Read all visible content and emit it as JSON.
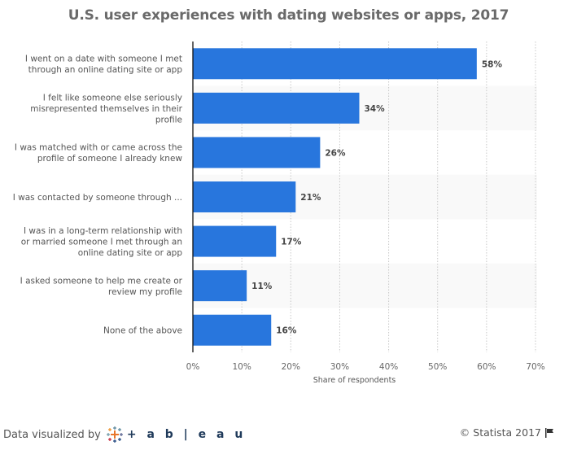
{
  "chart_data": {
    "type": "bar",
    "orientation": "horizontal",
    "title": "U.S. user experiences with dating websites or apps, 2017",
    "xlabel": "Share of respondents",
    "ylabel": "",
    "xlim": [
      0,
      70
    ],
    "x_ticks": [
      0,
      10,
      20,
      30,
      40,
      50,
      60,
      70
    ],
    "x_tick_labels": [
      "0%",
      "10%",
      "20%",
      "30%",
      "40%",
      "50%",
      "60%",
      "70%"
    ],
    "grid": true,
    "categories": [
      [
        "I went on a date with someone I met",
        "through an online dating site or app"
      ],
      [
        "I felt like someone else seriously",
        "misrepresented themselves in their",
        "profile"
      ],
      [
        "I was matched with or came across the",
        "profile of someone I already knew"
      ],
      [
        "I was contacted by someone through ..."
      ],
      [
        "I was in a long-term relationship with",
        "or married someone I met through an",
        "online dating site or app"
      ],
      [
        "I asked someone to help me create or",
        "review my profile"
      ],
      [
        "None of the above"
      ]
    ],
    "values": [
      58,
      34,
      26,
      21,
      17,
      11,
      16
    ],
    "value_labels": [
      "58%",
      "34%",
      "26%",
      "21%",
      "17%",
      "11%",
      "16%"
    ],
    "bar_color": "#2876dd",
    "alt_row_color": "#f9f9f9"
  },
  "footer": {
    "visualized_by": "Data visualized by",
    "tableau": "+ a b | e a u",
    "copyright": "© Statista 2017"
  }
}
